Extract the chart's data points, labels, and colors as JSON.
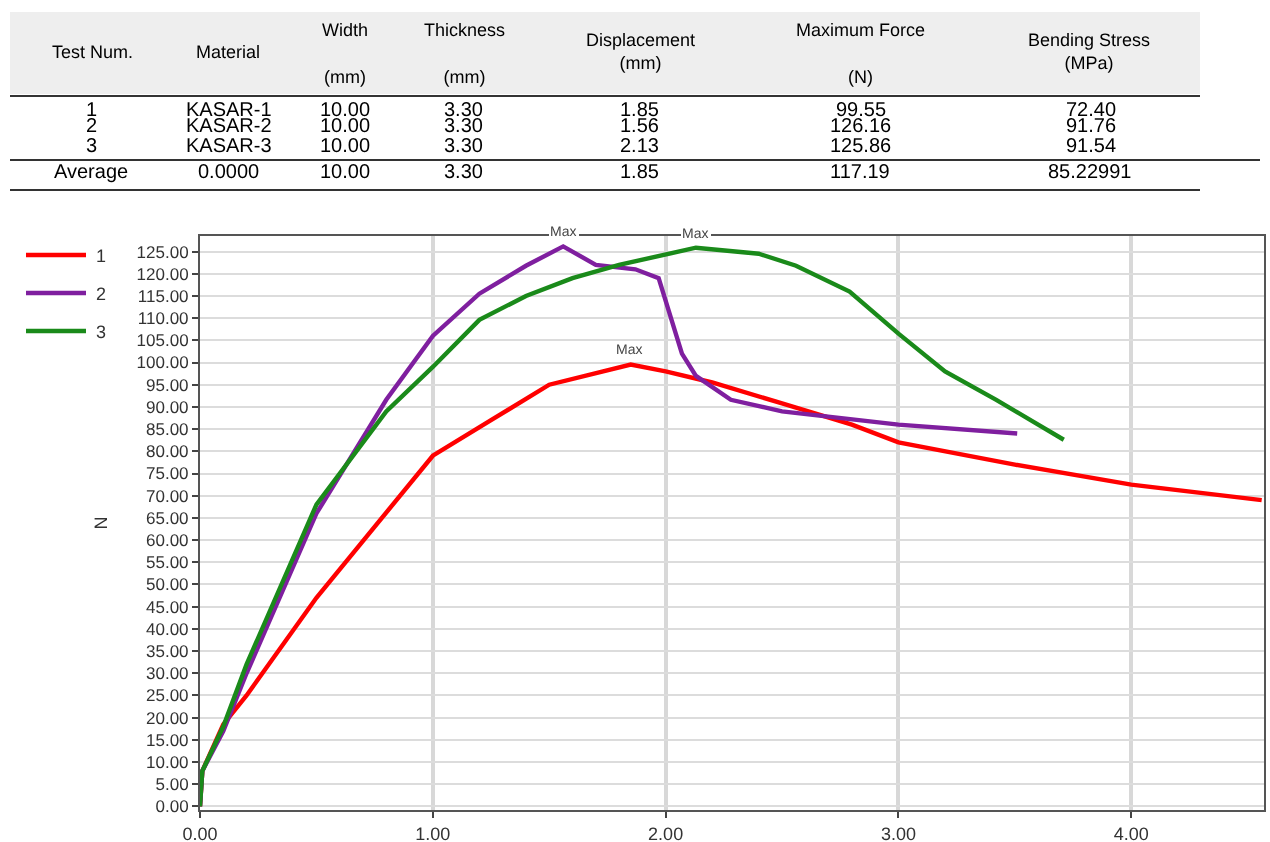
{
  "chart_data": {
    "type": "line",
    "ylabel": "N",
    "annotations": [
      "Test Num.",
      "Material",
      "Width\n\n(mm)",
      "Thickness\n\n(mm)",
      "Displacement\n(mm)",
      "Maximum Force\n\n(N)",
      "Bending Stress\n(MPa)",
      "1",
      "KASAR-1",
      "10.00",
      "3.30",
      "1.85",
      "99.55",
      "72.40",
      "2",
      "KASAR-2",
      "10.00",
      "3.30",
      "1.56",
      "126.16",
      "91.76",
      "3",
      "KASAR-3",
      "10.00",
      "3.30",
      "2.13",
      "125.86",
      "91.54",
      "Average",
      "0.0000",
      "10.00",
      "3.30",
      "1.85",
      "117.19",
      "85.22991",
      {
        "text": "Max",
        "x": 1.56,
        "y": 126.16
      },
      {
        "text": "Max",
        "x": 2.13,
        "y": 125.86
      },
      {
        "text": "Max",
        "x": 1.85,
        "y": 99.55
      }
    ],
    "series": [
      {
        "name": "1",
        "color": "#ff0000",
        "x": [
          0,
          0.01,
          0.1,
          0.2,
          0.5,
          1.0,
          1.25,
          1.5,
          1.85,
          2.0,
          2.2,
          2.5,
          2.8,
          3.0,
          3.5,
          4.0,
          4.56
        ],
        "values": [
          0,
          8,
          18.5,
          25,
          47,
          79,
          87,
          95,
          99.55,
          98,
          95.5,
          90.8,
          86,
          82,
          77,
          72.5,
          69
        ]
      },
      {
        "name": "2",
        "color": "#7f1f9f",
        "x": [
          0,
          0.01,
          0.1,
          0.2,
          0.5,
          0.8,
          1.0,
          1.2,
          1.4,
          1.56,
          1.7,
          1.87,
          1.97,
          2.07,
          2.13,
          2.28,
          2.5,
          3.0,
          3.51
        ],
        "values": [
          0,
          8,
          17,
          30,
          66,
          91.6,
          106,
          115.5,
          121.8,
          126.16,
          122,
          121,
          119,
          102,
          97,
          91.6,
          89,
          86,
          84
        ]
      },
      {
        "name": "3",
        "color": "#1a8a1a",
        "x": [
          0,
          0.01,
          0.1,
          0.2,
          0.5,
          0.8,
          1.0,
          1.2,
          1.4,
          1.6,
          1.8,
          2.13,
          2.4,
          2.56,
          2.79,
          3.0,
          3.2,
          3.42,
          3.6,
          3.71
        ],
        "values": [
          0,
          8,
          18,
          32,
          68,
          89,
          99,
          109.6,
          115,
          119,
          122,
          125.86,
          124.5,
          121.8,
          116,
          106.5,
          98,
          91.6,
          86,
          82.6
        ]
      }
    ],
    "xlim": [
      0,
      4.57
    ],
    "ylim": [
      -0.8,
      128.5
    ],
    "xticks": [
      {
        "value": 0,
        "label": "0.00"
      },
      {
        "value": 1,
        "label": "1.00"
      },
      {
        "value": 2,
        "label": "2.00"
      },
      {
        "value": 3,
        "label": "3.00"
      },
      {
        "value": 4,
        "label": "4.00"
      }
    ],
    "yticks": [
      {
        "value": 0,
        "label": "0.00"
      },
      {
        "value": 5,
        "label": "5.00"
      },
      {
        "value": 10,
        "label": "10.00"
      },
      {
        "value": 15,
        "label": "15.00"
      },
      {
        "value": 20,
        "label": "20.00"
      },
      {
        "value": 25,
        "label": "25.00"
      },
      {
        "value": 30,
        "label": "30.00"
      },
      {
        "value": 35,
        "label": "35.00"
      },
      {
        "value": 40,
        "label": "40.00"
      },
      {
        "value": 45,
        "label": "45.00"
      },
      {
        "value": 50,
        "label": "50.00"
      },
      {
        "value": 55,
        "label": "55.00"
      },
      {
        "value": 60,
        "label": "60.00"
      },
      {
        "value": 65,
        "label": "65.00"
      },
      {
        "value": 70,
        "label": "70.00"
      },
      {
        "value": 75,
        "label": "75.00"
      },
      {
        "value": 80,
        "label": "80.00"
      },
      {
        "value": 85,
        "label": "85.00"
      },
      {
        "value": 90,
        "label": "90.00"
      },
      {
        "value": 95,
        "label": "95.00"
      },
      {
        "value": 100,
        "label": "100.00"
      },
      {
        "value": 105,
        "label": "105.00"
      },
      {
        "value": 110,
        "label": "110.00"
      },
      {
        "value": 115,
        "label": "115.00"
      },
      {
        "value": 120,
        "label": "120.00"
      },
      {
        "value": 125,
        "label": "125.00"
      }
    ],
    "grid": true,
    "legend": "top left",
    "marker": "none",
    "line_style": "solid"
  }
}
